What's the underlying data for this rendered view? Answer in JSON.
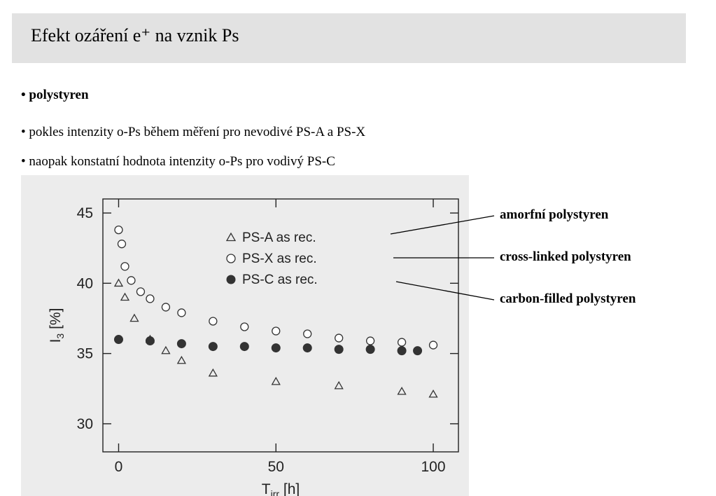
{
  "header": {
    "title": "Efekt ozáření e⁺ na vznik Ps"
  },
  "bullets": [
    "• polystyren",
    "• pokles intenzity o-Ps během měření pro nevodivé PS-A a PS-X",
    "• naopak konstatní hodnota intenzity o-Ps pro vodivý PS-C"
  ],
  "annotations": [
    "amorfní polystyren",
    "cross-linked polystyren",
    "carbon-filled polystyren"
  ],
  "colors": {
    "title_bar": "#e2e2e2",
    "scan_bg": "#ececec",
    "marker": "#333333"
  },
  "chart_data": {
    "type": "scatter",
    "xlabel": "T_irr [h]",
    "ylabel": "I_3 [%]",
    "xlim": [
      -5,
      108
    ],
    "ylim": [
      28,
      46
    ],
    "xticks": [
      0,
      50,
      100
    ],
    "yticks": [
      30,
      35,
      40,
      45
    ],
    "legend_position": "top-right",
    "series": [
      {
        "name": "PS-A as rec.",
        "marker": "open-triangle",
        "x": [
          0,
          2,
          5,
          10,
          15,
          20,
          30,
          50,
          70,
          90,
          100
        ],
        "y": [
          40.0,
          39.0,
          37.5,
          36.0,
          35.2,
          34.5,
          33.6,
          33.0,
          32.7,
          32.3,
          32.1
        ]
      },
      {
        "name": "PS-X as rec.",
        "marker": "open-circle",
        "x": [
          0,
          1,
          2,
          4,
          7,
          10,
          15,
          20,
          30,
          40,
          50,
          60,
          70,
          80,
          90,
          100
        ],
        "y": [
          43.8,
          42.8,
          41.2,
          40.2,
          39.4,
          38.9,
          38.3,
          37.9,
          37.3,
          36.9,
          36.6,
          36.4,
          36.1,
          35.9,
          35.8,
          35.6
        ]
      },
      {
        "name": "PS-C as rec.",
        "marker": "filled-circle",
        "x": [
          0,
          10,
          20,
          30,
          40,
          50,
          60,
          70,
          80,
          90,
          95
        ],
        "y": [
          36.0,
          35.9,
          35.7,
          35.5,
          35.5,
          35.4,
          35.4,
          35.3,
          35.3,
          35.2,
          35.2
        ]
      }
    ]
  }
}
